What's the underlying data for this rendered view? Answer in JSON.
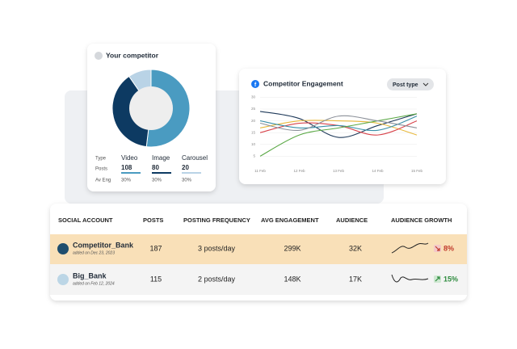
{
  "donut_card": {
    "title": "Your competitor",
    "row_labels": [
      "Type",
      "Posts",
      "Av Eng"
    ],
    "items": [
      {
        "label": "Video",
        "posts": 108,
        "engagement": "30%",
        "color": "#4a9bc1"
      },
      {
        "label": "Image",
        "posts": 80,
        "engagement": "30%",
        "color": "#0d3a62"
      },
      {
        "label": "Carousel",
        "posts": 20,
        "engagement": "30%",
        "color": "#b9d3e6"
      }
    ]
  },
  "engagement_card": {
    "title": "Competitor Engagement",
    "button": "Post type",
    "chart_data": {
      "type": "line",
      "categories": [
        "11 Feb",
        "12 Feb",
        "13 Feb",
        "14 Feb",
        "15 Feb"
      ],
      "ylim": [
        0,
        30
      ],
      "yticks": [
        5,
        10,
        15,
        20,
        25,
        30
      ],
      "grid": true,
      "series": [
        {
          "color": "#1f3a5a",
          "values": [
            24,
            21,
            13,
            18,
            23
          ]
        },
        {
          "color": "#e8b83a",
          "values": [
            17,
            20,
            20,
            19,
            14
          ]
        },
        {
          "color": "#d8434b",
          "values": [
            15,
            19,
            18,
            14,
            20
          ]
        },
        {
          "color": "#3a8fa8",
          "values": [
            20,
            17,
            18,
            16,
            22
          ]
        },
        {
          "color": "#5aa845",
          "values": [
            5,
            14,
            17,
            20,
            23
          ]
        },
        {
          "color": "#8a8f98",
          "values": [
            19,
            16,
            22,
            20,
            17
          ]
        }
      ]
    }
  },
  "table": {
    "headers": [
      "SOCIAL ACCOUNT",
      "POSTS",
      "POSTING FREQUENCY",
      "AVG ENGAGEMENT",
      "AUDIENCE",
      "AUDIENCE GROWTH"
    ],
    "rows": [
      {
        "account": "Competitor_Bank",
        "added": "added on Dec 23, 2023",
        "posts": 187,
        "frequency": "3 posts/day",
        "engagement": "299K",
        "audience": "32K",
        "growth": "8%"
      },
      {
        "account": "Big_Bank",
        "added": "added on Feb 12, 2024",
        "posts": 115,
        "frequency": "2 posts/day",
        "engagement": "148K",
        "audience": "17K",
        "growth": "15%"
      }
    ]
  }
}
